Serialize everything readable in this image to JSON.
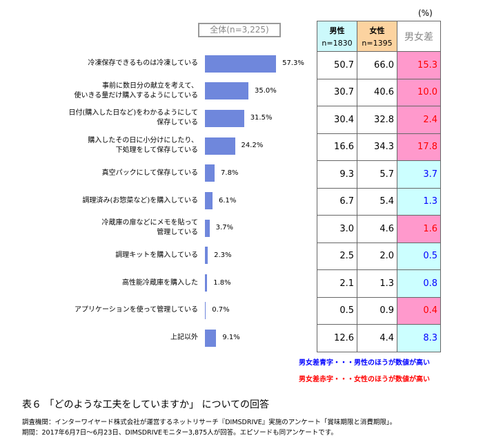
{
  "chart_data": {
    "type": "bar",
    "orientation": "horizontal",
    "title": "表６ 「どのような工夫をしていますか」 についての回答",
    "series_label": "全体(n=3,225)",
    "categories": [
      "冷凍保存できるものは冷凍している",
      "事前に数日分の献立を考えて、\n使いきる量だけ購入するようにしている",
      "日付(購入した日など)をわかるようにして\n保存している",
      "購入したその日に小分けにしたり、\n下処理をして保存している",
      "真空パックにして保存している",
      "調理済み(お惣菜など)を購入している",
      "冷蔵庫の扉などにメモを貼って\n管理している",
      "調理キットを購入している",
      "高性能冷蔵庫を購入した",
      "アプリケーションを使って管理している",
      "上記以外"
    ],
    "values": [
      57.3,
      35.0,
      31.5,
      24.2,
      7.8,
      6.1,
      3.7,
      2.3,
      1.8,
      0.7,
      9.1
    ],
    "value_labels": [
      "57.3%",
      "35.0%",
      "31.5%",
      "24.2%",
      "7.8%",
      "6.1%",
      "3.7%",
      "2.3%",
      "1.8%",
      "0.7%",
      "9.1%"
    ],
    "bar_color": "#6f87dc",
    "grid": false
  },
  "table": {
    "unit": "(%)",
    "headers": [
      {
        "label": "男性",
        "n": "n=1830",
        "color": "#ccf9fb"
      },
      {
        "label": "女性",
        "n": "n=1395",
        "color": "#fcd3a0"
      },
      {
        "label": "男女差",
        "n": "",
        "color": "#ffffff"
      }
    ],
    "rows": [
      {
        "male": "50.7",
        "female": "66.0",
        "diff": "15.3",
        "higher": "female"
      },
      {
        "male": "30.7",
        "female": "40.6",
        "diff": "10.0",
        "higher": "female"
      },
      {
        "male": "30.4",
        "female": "32.8",
        "diff": "2.4",
        "higher": "female"
      },
      {
        "male": "16.6",
        "female": "34.3",
        "diff": "17.8",
        "higher": "female"
      },
      {
        "male": "9.3",
        "female": "5.7",
        "diff": "3.7",
        "higher": "male"
      },
      {
        "male": "6.7",
        "female": "5.4",
        "diff": "1.3",
        "higher": "male"
      },
      {
        "male": "3.0",
        "female": "4.6",
        "diff": "1.6",
        "higher": "female"
      },
      {
        "male": "2.5",
        "female": "2.0",
        "diff": "0.5",
        "higher": "male"
      },
      {
        "male": "2.1",
        "female": "1.3",
        "diff": "0.8",
        "higher": "male"
      },
      {
        "male": "0.5",
        "female": "0.9",
        "diff": "0.4",
        "higher": "female"
      },
      {
        "male": "12.6",
        "female": "4.4",
        "diff": "8.3",
        "higher": "male"
      }
    ],
    "colors": {
      "female_bg": "#ff99cc",
      "female_text": "#ff0000",
      "male_bg": "#ccffff",
      "male_text": "#0000ff"
    }
  },
  "notes": {
    "blue": "男女差青字・・・男性のほうが数値が高い",
    "red": "男女差赤字・・・女性のほうが数値が高い"
  },
  "source": {
    "line1": "調査機関：インターワイヤード株式会社が運営するネットリサーチ『DIMSDRIVE』実施のアンケート「賞味期限と消費期限」。",
    "line2": "期間：2017年6月7日～6月23日、DIMSDRIVEモニター3,875人が回答。エピソードも同アンケートです。"
  }
}
